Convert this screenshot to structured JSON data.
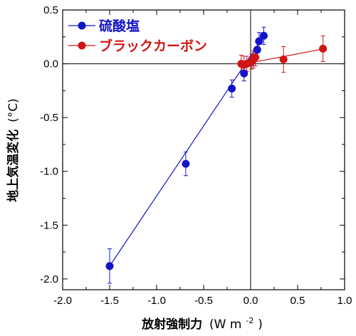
{
  "chart_data": {
    "type": "scatter",
    "xlabel": "放射強制力",
    "xunit": "(W m",
    "xunit_sup": "-2",
    "xunit_close": ")",
    "ylabel": "地上気温変化",
    "yunit": "(°C)",
    "xlim": [
      -2.0,
      1.0
    ],
    "ylim": [
      -2.1,
      0.5
    ],
    "xticks": [
      -2.0,
      -1.5,
      -1.0,
      -0.5,
      0.0,
      0.5,
      1.0
    ],
    "yticks": [
      -2.0,
      -1.5,
      -1.0,
      -0.5,
      0.0,
      0.5
    ],
    "xtick_labels": [
      "-2.0",
      "-1.5",
      "-1.0",
      "-0.5",
      "0.0",
      "0.5",
      "1.0"
    ],
    "ytick_labels": [
      "-2.0",
      "-1.5",
      "-1.0",
      "-0.5",
      "0.0",
      "0.5"
    ],
    "grid": false,
    "legend_position": "top-left",
    "zero_lines": true,
    "series": [
      {
        "name": "硫酸塩",
        "color": "#1414c8",
        "points": [
          {
            "x": -1.5,
            "y": -1.88,
            "xerr": 0.04,
            "yerr": 0.16
          },
          {
            "x": -0.69,
            "y": -0.93,
            "xerr": 0.02,
            "yerr": 0.11
          },
          {
            "x": -0.2,
            "y": -0.23,
            "xerr": 0.02,
            "yerr": 0.08
          },
          {
            "x": -0.07,
            "y": -0.09,
            "xerr": 0.02,
            "yerr": 0.07
          },
          {
            "x": 0.02,
            "y": 0.03,
            "xerr": 0.01,
            "yerr": 0.05
          },
          {
            "x": 0.07,
            "y": 0.13,
            "xerr": 0.02,
            "yerr": 0.07
          },
          {
            "x": 0.09,
            "y": 0.21,
            "xerr": 0.02,
            "yerr": 0.08
          },
          {
            "x": 0.14,
            "y": 0.26,
            "xerr": 0.02,
            "yerr": 0.08
          }
        ],
        "fit": {
          "x": [
            -1.5,
            0.15
          ],
          "y": [
            -1.88,
            0.27
          ]
        }
      },
      {
        "name": "ブラックカーボン",
        "color": "#d21414",
        "points": [
          {
            "x": -0.1,
            "y": 0.0,
            "xerr": 0.02,
            "yerr": 0.08
          },
          {
            "x": -0.07,
            "y": -0.01,
            "xerr": 0.02,
            "yerr": 0.08
          },
          {
            "x": -0.04,
            "y": 0.0,
            "xerr": 0.02,
            "yerr": 0.07
          },
          {
            "x": 0.01,
            "y": 0.02,
            "xerr": 0.02,
            "yerr": 0.07
          },
          {
            "x": 0.03,
            "y": 0.04,
            "xerr": 0.02,
            "yerr": 0.08
          },
          {
            "x": 0.05,
            "y": 0.06,
            "xerr": 0.02,
            "yerr": 0.08
          },
          {
            "x": 0.35,
            "y": 0.04,
            "xerr": 0.04,
            "yerr": 0.12
          },
          {
            "x": 0.77,
            "y": 0.14,
            "xerr": 0.04,
            "yerr": 0.12
          }
        ],
        "fit": {
          "x": [
            -0.12,
            0.79
          ],
          "y": [
            -0.01,
            0.14
          ]
        }
      }
    ]
  }
}
